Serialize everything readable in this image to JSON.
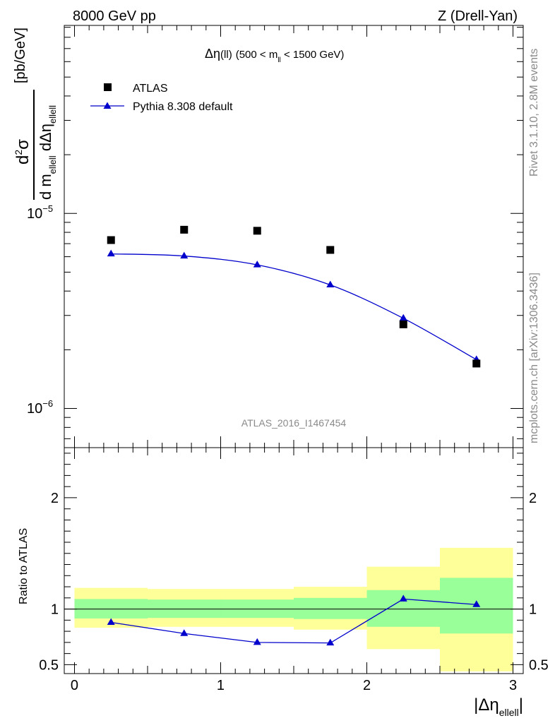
{
  "header": {
    "left": "8000 GeV pp",
    "right": "Z (Drell-Yan)"
  },
  "side_labels": {
    "rivet": "Rivet 3.1.10,  2.8M events",
    "mcplots": "mcplots.cern.ch [arXiv:1306.3436]"
  },
  "colors": {
    "data": "#000000",
    "mc": "#0000cc",
    "band_inner": "#99ff99",
    "band_outer": "#ffff99"
  },
  "chart_data": [
    {
      "type": "scatter",
      "title": {
        "prefix": "Δη",
        "paren": "(ll)",
        "range_text": "(500 < m",
        "sub": "ll",
        "range_end": " < 1500 GeV)"
      },
      "watermark": "ATLAS_2016_I1467454",
      "ylabel": {
        "num_d": "d",
        "num_sup": "2",
        "num_sigma": "σ",
        "den_d": "d m",
        "den_sub1": "ellell",
        "den_mid": " dΔη",
        "den_sub2": "ellell",
        "unit": "[pb/GeV]"
      },
      "yscale": "log",
      "ylim": [
        6.3e-07,
        9.2e-05
      ],
      "xlim": [
        -0.07,
        3.07
      ],
      "ytick_labels": [
        {
          "value": 1e-05,
          "base": "10",
          "exp": "−5"
        },
        {
          "value": 1e-06,
          "base": "10",
          "exp": "−6"
        }
      ],
      "legend_placement": "top-left",
      "series": [
        {
          "name": "ATLAS",
          "marker": "square",
          "x": [
            0.25,
            0.75,
            1.25,
            1.75,
            2.25,
            2.75
          ],
          "y": [
            7.3e-06,
            8.25e-06,
            8.15e-06,
            6.5e-06,
            2.7e-06,
            1.7e-06
          ]
        },
        {
          "name": "Pythia 8.308 default",
          "marker": "triangle",
          "line": true,
          "x": [
            0.25,
            0.75,
            1.25,
            1.75,
            2.25,
            2.75
          ],
          "y": [
            6.2e-06,
            6.05e-06,
            5.45e-06,
            4.3e-06,
            2.9e-06,
            1.78e-06
          ]
        }
      ]
    },
    {
      "type": "line",
      "ylabel": "Ratio to ATLAS",
      "xlabel": {
        "main": "|Δη",
        "sub": "ellell",
        "end": "|"
      },
      "ylim": [
        0.42,
        2.45
      ],
      "xlim": [
        -0.07,
        3.07
      ],
      "yticks": [
        0.5,
        1,
        2
      ],
      "ytick_labels": [
        "0.5",
        "1",
        "2"
      ],
      "xticks": [
        0,
        1,
        2,
        3
      ],
      "xtick_labels": [
        "0",
        "1",
        "2",
        "3"
      ],
      "bands": [
        {
          "x0": 0.0,
          "x1": 0.5,
          "inner": [
            0.915,
            1.09
          ],
          "outer": [
            0.832,
            1.19
          ]
        },
        {
          "x0": 0.5,
          "x1": 1.0,
          "inner": [
            0.92,
            1.085
          ],
          "outer": [
            0.84,
            1.18
          ]
        },
        {
          "x0": 1.0,
          "x1": 1.5,
          "inner": [
            0.92,
            1.085
          ],
          "outer": [
            0.84,
            1.18
          ]
        },
        {
          "x0": 1.5,
          "x1": 2.0,
          "inner": [
            0.91,
            1.1
          ],
          "outer": [
            0.815,
            1.2
          ]
        },
        {
          "x0": 2.0,
          "x1": 2.5,
          "inner": [
            0.84,
            1.17
          ],
          "outer": [
            0.64,
            1.38
          ]
        },
        {
          "x0": 2.5,
          "x1": 3.0,
          "inner": [
            0.78,
            1.28
          ],
          "outer": [
            0.44,
            1.55
          ]
        }
      ],
      "series": [
        {
          "name": "Pythia 8.308 default",
          "x": [
            0.25,
            0.75,
            1.25,
            1.75,
            2.25,
            2.75
          ],
          "y": [
            0.88,
            0.78,
            0.7,
            0.695,
            1.09,
            1.04
          ]
        }
      ],
      "reference_line": 1
    }
  ]
}
